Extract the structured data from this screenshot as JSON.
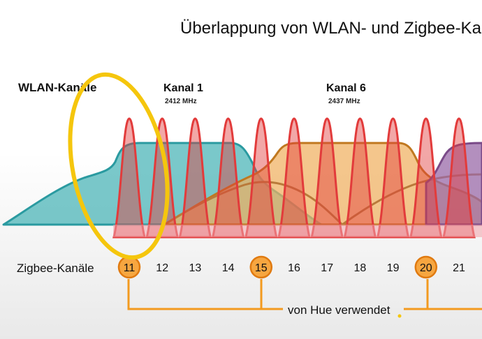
{
  "title": "Überlappung von WLAN- und Zigbee-Kanälen",
  "wlan_label": "WLAN-Kanäle",
  "wlan_channels": [
    {
      "label": "Kanal 1",
      "freq": "2412 MHz",
      "color": "#4db6b8"
    },
    {
      "label": "Kanal 6",
      "freq": "2437 MHz",
      "color": "#f0b060"
    }
  ],
  "zigbee_label": "Zigbee-Kanäle",
  "zigbee_channels": [
    "11",
    "12",
    "13",
    "14",
    "15",
    "16",
    "17",
    "18",
    "19",
    "20",
    "21"
  ],
  "hue_channels": [
    "11",
    "15",
    "20"
  ],
  "hue_label": "von Hue verwendet",
  "colors": {
    "zigbee_peak": "#e23b3b",
    "hue_circle": "#f7a640",
    "hue_line": "#f39a1f",
    "highlight_ellipse": "#f5c60d",
    "wlan_ch1": "#4db6b8",
    "wlan_ch6": "#f0b060",
    "wlan_ch11": "#9a6aa8"
  }
}
